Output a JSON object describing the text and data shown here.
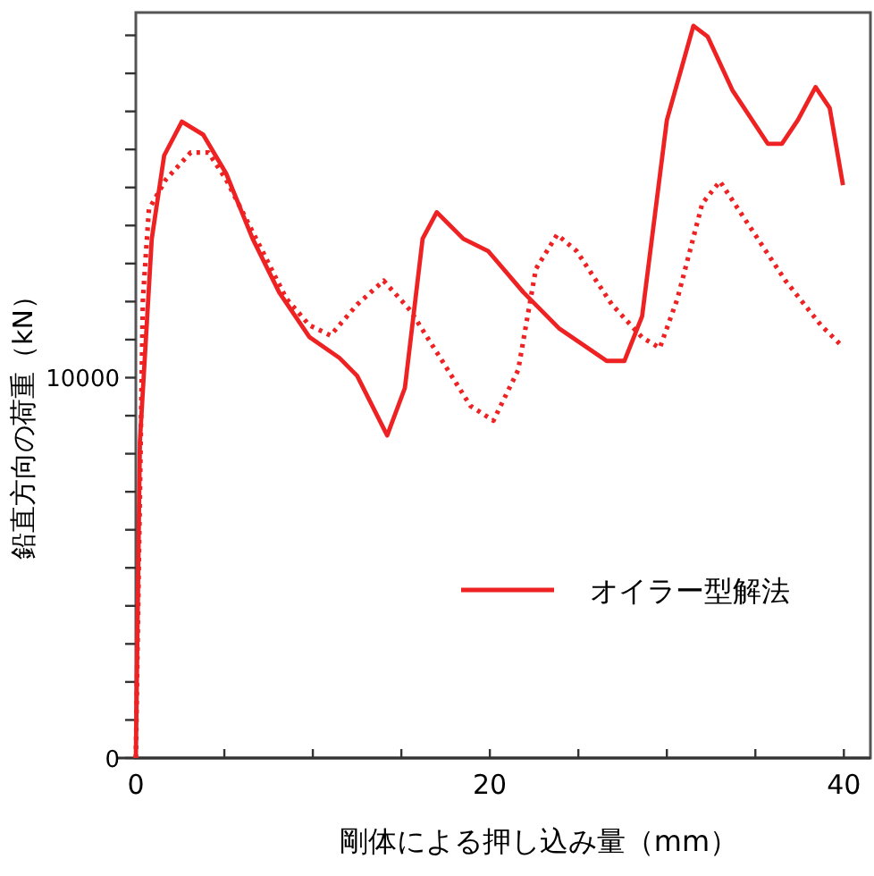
{
  "chart_data": {
    "type": "line",
    "xlabel": "剛体による押し込み量（mm）",
    "ylabel": "鉛直方向の荷重（kN）",
    "xlim": [
      0,
      41.5
    ],
    "ylim": [
      0,
      19600
    ],
    "xticks": [
      0,
      {
        "value": 5,
        "label": null
      },
      {
        "value": 10,
        "label": null
      },
      {
        "value": 15,
        "label": null
      },
      20,
      {
        "value": 25,
        "label": null
      },
      {
        "value": 30,
        "label": null
      },
      {
        "value": 35,
        "label": null
      },
      40
    ],
    "yticks": [
      0,
      {
        "value": 1000,
        "label": null
      },
      {
        "value": 2000,
        "label": null
      },
      {
        "value": 3000,
        "label": null
      },
      {
        "value": 4000,
        "label": null
      },
      {
        "value": 5000,
        "label": null
      },
      {
        "value": 6000,
        "label": null
      },
      {
        "value": 7000,
        "label": null
      },
      {
        "value": 8000,
        "label": null
      },
      {
        "value": 9000,
        "label": null
      },
      10000,
      {
        "value": 11000,
        "label": null
      },
      {
        "value": 12000,
        "label": null
      },
      {
        "value": 13000,
        "label": null
      },
      {
        "value": 14000,
        "label": null
      },
      {
        "value": 15000,
        "label": null
      },
      {
        "value": 16000,
        "label": null
      },
      {
        "value": 17000,
        "label": null
      },
      {
        "value": 18000,
        "label": null
      },
      {
        "value": 19000,
        "label": null
      }
    ],
    "grid": false,
    "legend": "bottom right",
    "marker": "none",
    "series": [
      {
        "name": "オイラー型解法",
        "color": "#ee2222",
        "line_style": "solid",
        "x": [
          0,
          0.23,
          0.9,
          1.6,
          2.6,
          3.8,
          5.1,
          6.6,
          8.1,
          9.8,
          11.5,
          12.5,
          14.2,
          15.2,
          16.2,
          17.0,
          18.5,
          19.9,
          21.9,
          23.9,
          26.6,
          27.6,
          28.6,
          30.0,
          31.5,
          32.3,
          33.7,
          35.7,
          36.5,
          37.4,
          38.4,
          39.2,
          39.95
        ],
        "values": [
          0,
          8320,
          13650,
          15840,
          16730,
          16390,
          15370,
          13650,
          12240,
          11070,
          10520,
          10050,
          8480,
          9730,
          13650,
          14350,
          13650,
          13330,
          12240,
          11300,
          10440,
          10440,
          11610,
          16770,
          19250,
          18970,
          17560,
          16150,
          16150,
          16770,
          17640,
          17090,
          15060
        ]
      },
      {
        "color": "#ee2222",
        "line_style": "dotted",
        "x": [
          0,
          0.4,
          0.74,
          1.7,
          3.1,
          4.1,
          5.1,
          6.8,
          8.5,
          9.8,
          11.0,
          12.5,
          14.0,
          15.5,
          17.2,
          18.9,
          20.2,
          21.6,
          22.6,
          23.8,
          24.9,
          26.9,
          28.6,
          29.6,
          30.6,
          32.0,
          33.0,
          34.7,
          36.7,
          38.7,
          39.9
        ],
        "values": [
          0,
          12080,
          14430,
          15210,
          15920,
          15920,
          15210,
          13650,
          12080,
          11380,
          11110,
          11920,
          12550,
          11770,
          10520,
          9260,
          8870,
          10200,
          12860,
          13760,
          13330,
          11920,
          11060,
          10780,
          12080,
          14580,
          15160,
          13960,
          12550,
          11380,
          10830
        ]
      }
    ]
  }
}
